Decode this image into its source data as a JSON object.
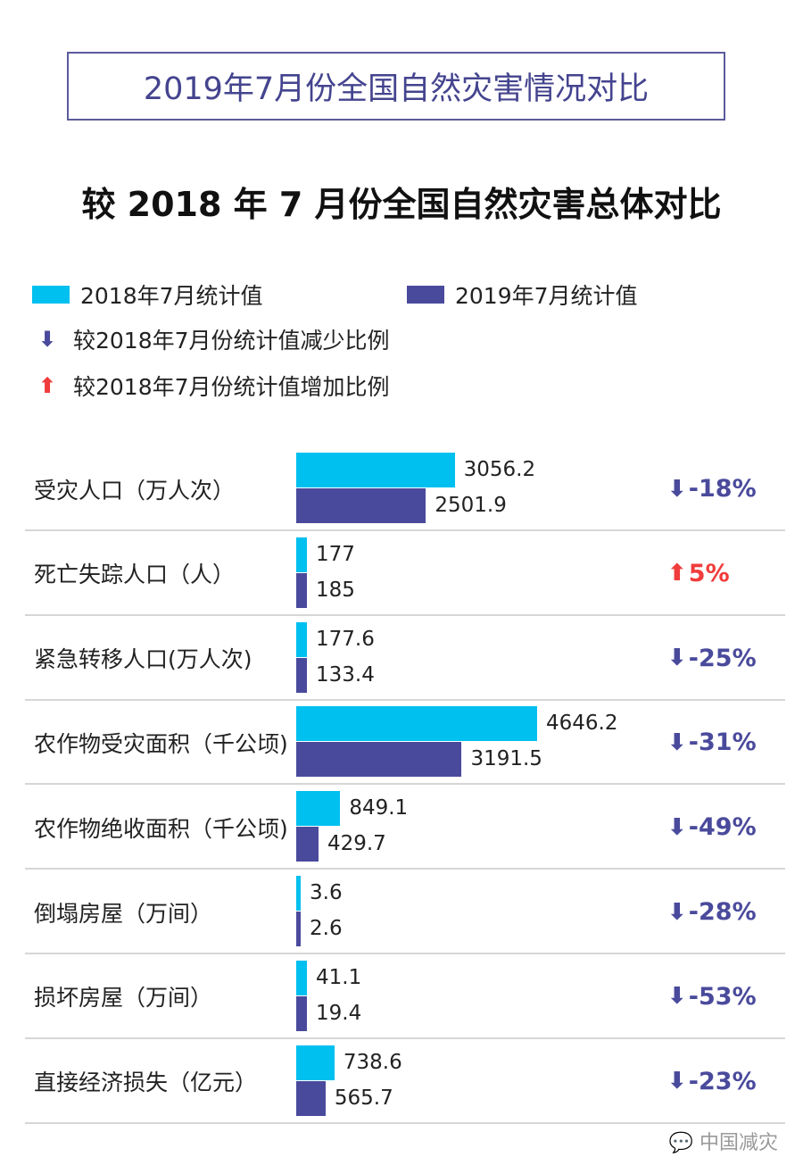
{
  "title": "2019年7月份全国自然灾害情况对比",
  "chart_data": {
    "type": "bar",
    "orientation": "horizontal",
    "title": "较 2018 年 7 月份全国自然灾害总体对比",
    "legend": {
      "series_2018": "2018年7月统计值",
      "series_2019": "2019年7月统计值",
      "decrease": "较2018年7月份统计值减少比例",
      "increase": "较2018年7月份统计值增加比例"
    },
    "colors": {
      "series_2018": "#00c0ef",
      "series_2019": "#4a4a9c",
      "decrease": "#4a4a9c",
      "increase": "#f03c3c"
    },
    "categories": [
      "受灾人口（万人次）",
      "死亡失踪人口（人）",
      "紧急转移人口(万人次)",
      "农作物受灾面积（千公顷)",
      "农作物绝收面积（千公顷)",
      "倒塌房屋（万间）",
      "损坏房屋（万间）",
      "直接经济损失（亿元）"
    ],
    "series": [
      {
        "name": "2018年7月统计值",
        "values": [
          3056.2,
          177,
          177.6,
          4646.2,
          849.1,
          3.6,
          41.1,
          738.6
        ],
        "labels": [
          "3056.2",
          "177",
          "177.6",
          "4646.2",
          "849.1",
          "3.6",
          "41.1",
          "738.6"
        ]
      },
      {
        "name": "2019年7月统计值",
        "values": [
          2501.9,
          185,
          133.4,
          3191.5,
          429.7,
          2.6,
          19.4,
          565.7
        ],
        "labels": [
          "2501.9",
          "185",
          "133.4",
          "3191.5",
          "429.7",
          "2.6",
          "19.4",
          "565.7"
        ]
      }
    ],
    "change": [
      {
        "text": "-18%",
        "dir": "down"
      },
      {
        "text": "5%",
        "dir": "up"
      },
      {
        "text": "-25%",
        "dir": "down"
      },
      {
        "text": "-31%",
        "dir": "down"
      },
      {
        "text": "-49%",
        "dir": "down"
      },
      {
        "text": "-28%",
        "dir": "down"
      },
      {
        "text": "-53%",
        "dir": "down"
      },
      {
        "text": "-23%",
        "dir": "down"
      }
    ]
  },
  "watermark": "中国减灾"
}
